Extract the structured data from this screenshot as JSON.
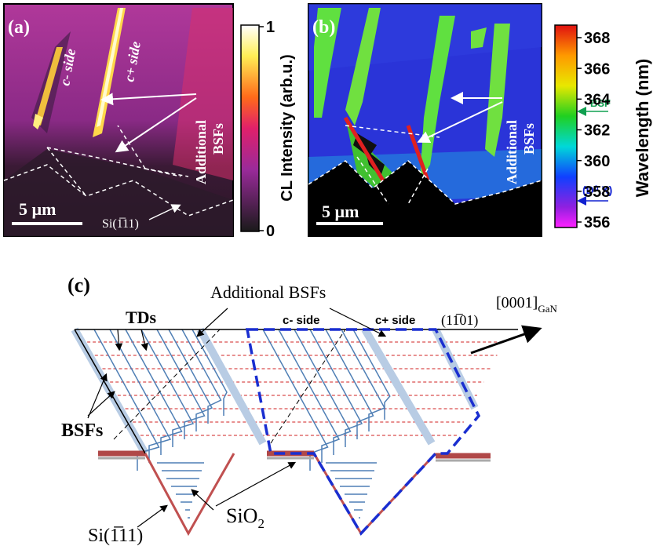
{
  "panel_a": {
    "label": "(a)",
    "c_minus": "c- side",
    "c_plus": "c+ side",
    "additional_bsfs": [
      "Additional",
      "BSFs"
    ],
    "scale_bar": "5 µm",
    "substrate": "Si(1̅11)",
    "colorbar": {
      "label": "CL Intensity (arb.u.)",
      "ticks": [
        1,
        0
      ]
    }
  },
  "panel_b": {
    "label": "(b)",
    "additional_bsfs": [
      "Additional",
      "BSFs"
    ],
    "scale_bar": "5 µm",
    "colorbar": {
      "label": "Wavelength (nm)",
      "ticks": [
        368,
        366,
        364,
        362,
        360,
        358,
        356
      ],
      "bsf": "BSF",
      "d0x": "(D⁰,X)"
    }
  },
  "panel_c": {
    "label": "(c)",
    "additional_bsfs": "Additional BSFs",
    "tds": "TDs",
    "c_minus": "c- side",
    "c_plus": "c+ side",
    "facet": "(11̅01)",
    "direction": {
      "text": "[0001]",
      "sub": "GaN"
    },
    "bsfs": "BSFs",
    "substrate": "Si(1̅11)",
    "oxide": {
      "text": "SiO",
      "sub": "2"
    }
  }
}
